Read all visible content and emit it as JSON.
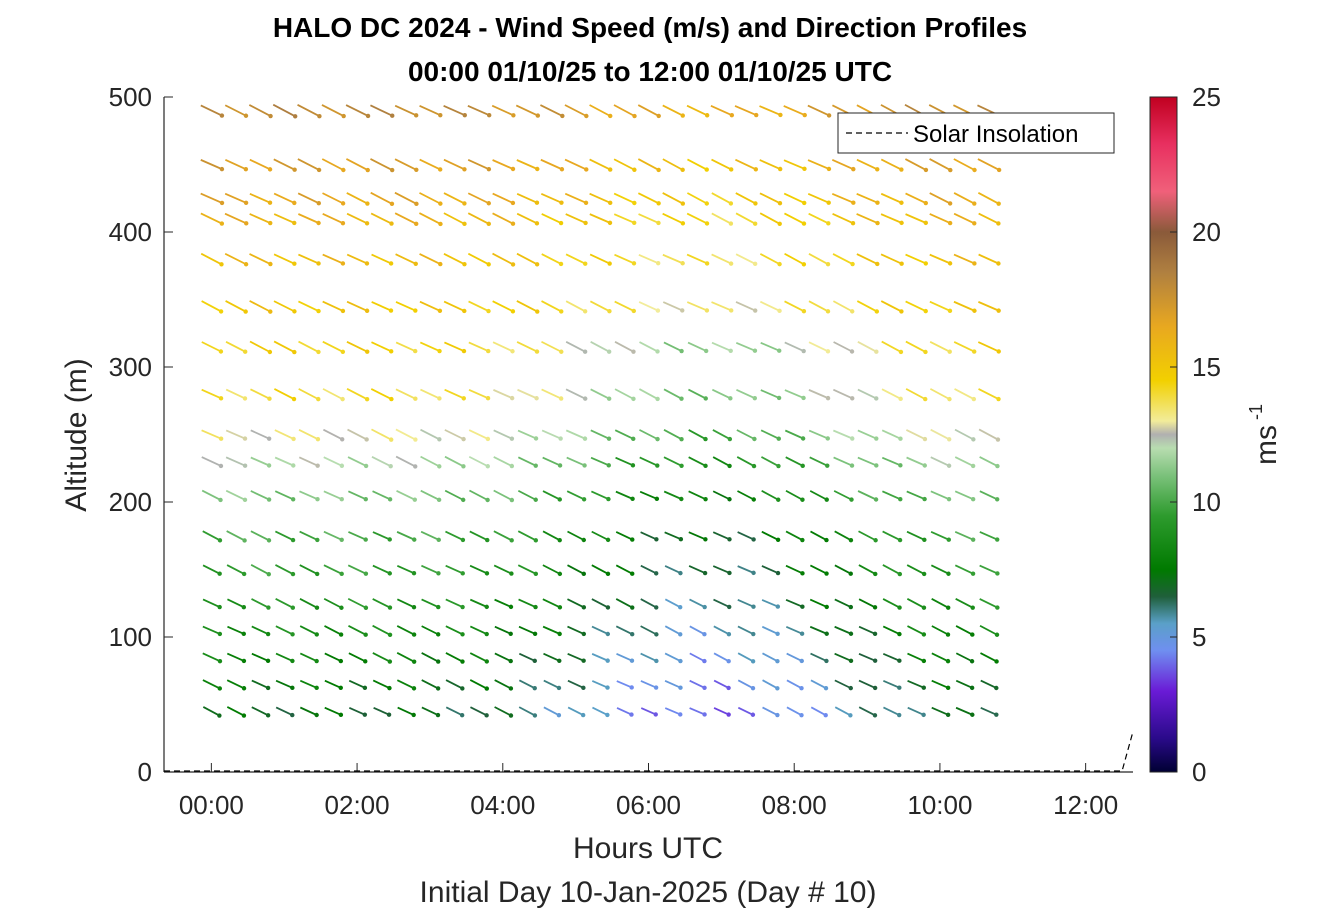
{
  "chart_data": {
    "type": "quiver",
    "title": "HALO DC 2024 - Wind Speed (m/s) and Direction Profiles",
    "subtitle": "00:00 01/10/25 to 12:00 01/10/25  UTC",
    "xlabel": "Hours UTC",
    "xlabel2": "Initial Day 10-Jan-2025 (Day # 10)",
    "ylabel": "Altitude (m)",
    "colorbar_label": "ms",
    "colorbar_exponent": "-1",
    "x_ticks": [
      "00:00",
      "02:00",
      "04:00",
      "06:00",
      "08:00",
      "10:00",
      "12:00"
    ],
    "x_tick_hours": [
      0,
      2,
      4,
      6,
      8,
      10,
      12
    ],
    "xlim_hours": [
      -0.65,
      12.65
    ],
    "y_ticks": [
      0,
      100,
      200,
      300,
      400,
      500
    ],
    "ylim": [
      0,
      500
    ],
    "colorbar_ticks": [
      0,
      5,
      10,
      15,
      20,
      25
    ],
    "clim": [
      0,
      25
    ],
    "legend": {
      "entry": "Solar Insolation",
      "placement": "top-right"
    },
    "altitudes": [
      45,
      65,
      85,
      105,
      125,
      150,
      175,
      205,
      230,
      250,
      280,
      315,
      345,
      380,
      410,
      425,
      450,
      490
    ],
    "time_hours": [
      0,
      0.333,
      0.667,
      1.0,
      1.333,
      1.667,
      2.0,
      2.333,
      2.667,
      3.0,
      3.333,
      3.667,
      4.0,
      4.333,
      4.667,
      5.0,
      5.333,
      5.667,
      6.0,
      6.333,
      6.667,
      7.0,
      7.333,
      7.667,
      8.0,
      8.333,
      8.667,
      9.0,
      9.333,
      9.667,
      10.0,
      10.333,
      10.667
    ],
    "speed_profile_ms": [
      7,
      7.5,
      8,
      8.5,
      9,
      9.5,
      10,
      11,
      12,
      13,
      14,
      14.5,
      15,
      15.5,
      16,
      16.5,
      17,
      18
    ],
    "direction_deg": 290,
    "solar_insolation_line": {
      "flat_value": 0,
      "rise_at_end": true
    }
  }
}
